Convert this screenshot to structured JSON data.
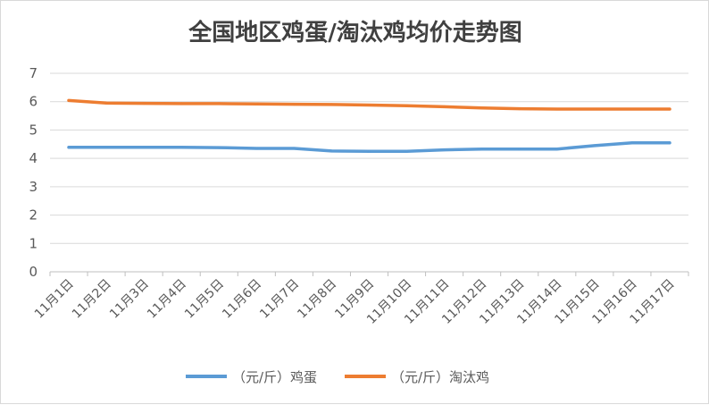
{
  "chart_data": {
    "type": "line",
    "title": "全国地区鸡蛋/淘汰鸡均价走势图",
    "categories": [
      "11月1日",
      "11月2日",
      "11月3日",
      "11月4日",
      "11月5日",
      "11月6日",
      "11月7日",
      "11月8日",
      "11月9日",
      "11月10日",
      "11月11日",
      "11月12日",
      "11月13日",
      "11月14日",
      "11月15日",
      "11月16日",
      "11月17日"
    ],
    "y_ticks": [
      "0",
      "1",
      "2",
      "3",
      "4",
      "5",
      "6",
      "7"
    ],
    "ylim": [
      0,
      7
    ],
    "grid": true,
    "legend_position": "bottom",
    "series": [
      {
        "name": "（元/斤）鸡蛋",
        "color": "#5b9bd5",
        "values": [
          4.39,
          4.39,
          4.39,
          4.39,
          4.38,
          4.35,
          4.35,
          4.26,
          4.25,
          4.25,
          4.3,
          4.33,
          4.33,
          4.33,
          4.45,
          4.55,
          4.55
        ]
      },
      {
        "name": "（元/斤）淘汰鸡",
        "color": "#ed7d31",
        "values": [
          6.04,
          5.95,
          5.94,
          5.93,
          5.93,
          5.92,
          5.91,
          5.9,
          5.88,
          5.86,
          5.82,
          5.78,
          5.75,
          5.74,
          5.74,
          5.74,
          5.74
        ]
      }
    ]
  }
}
